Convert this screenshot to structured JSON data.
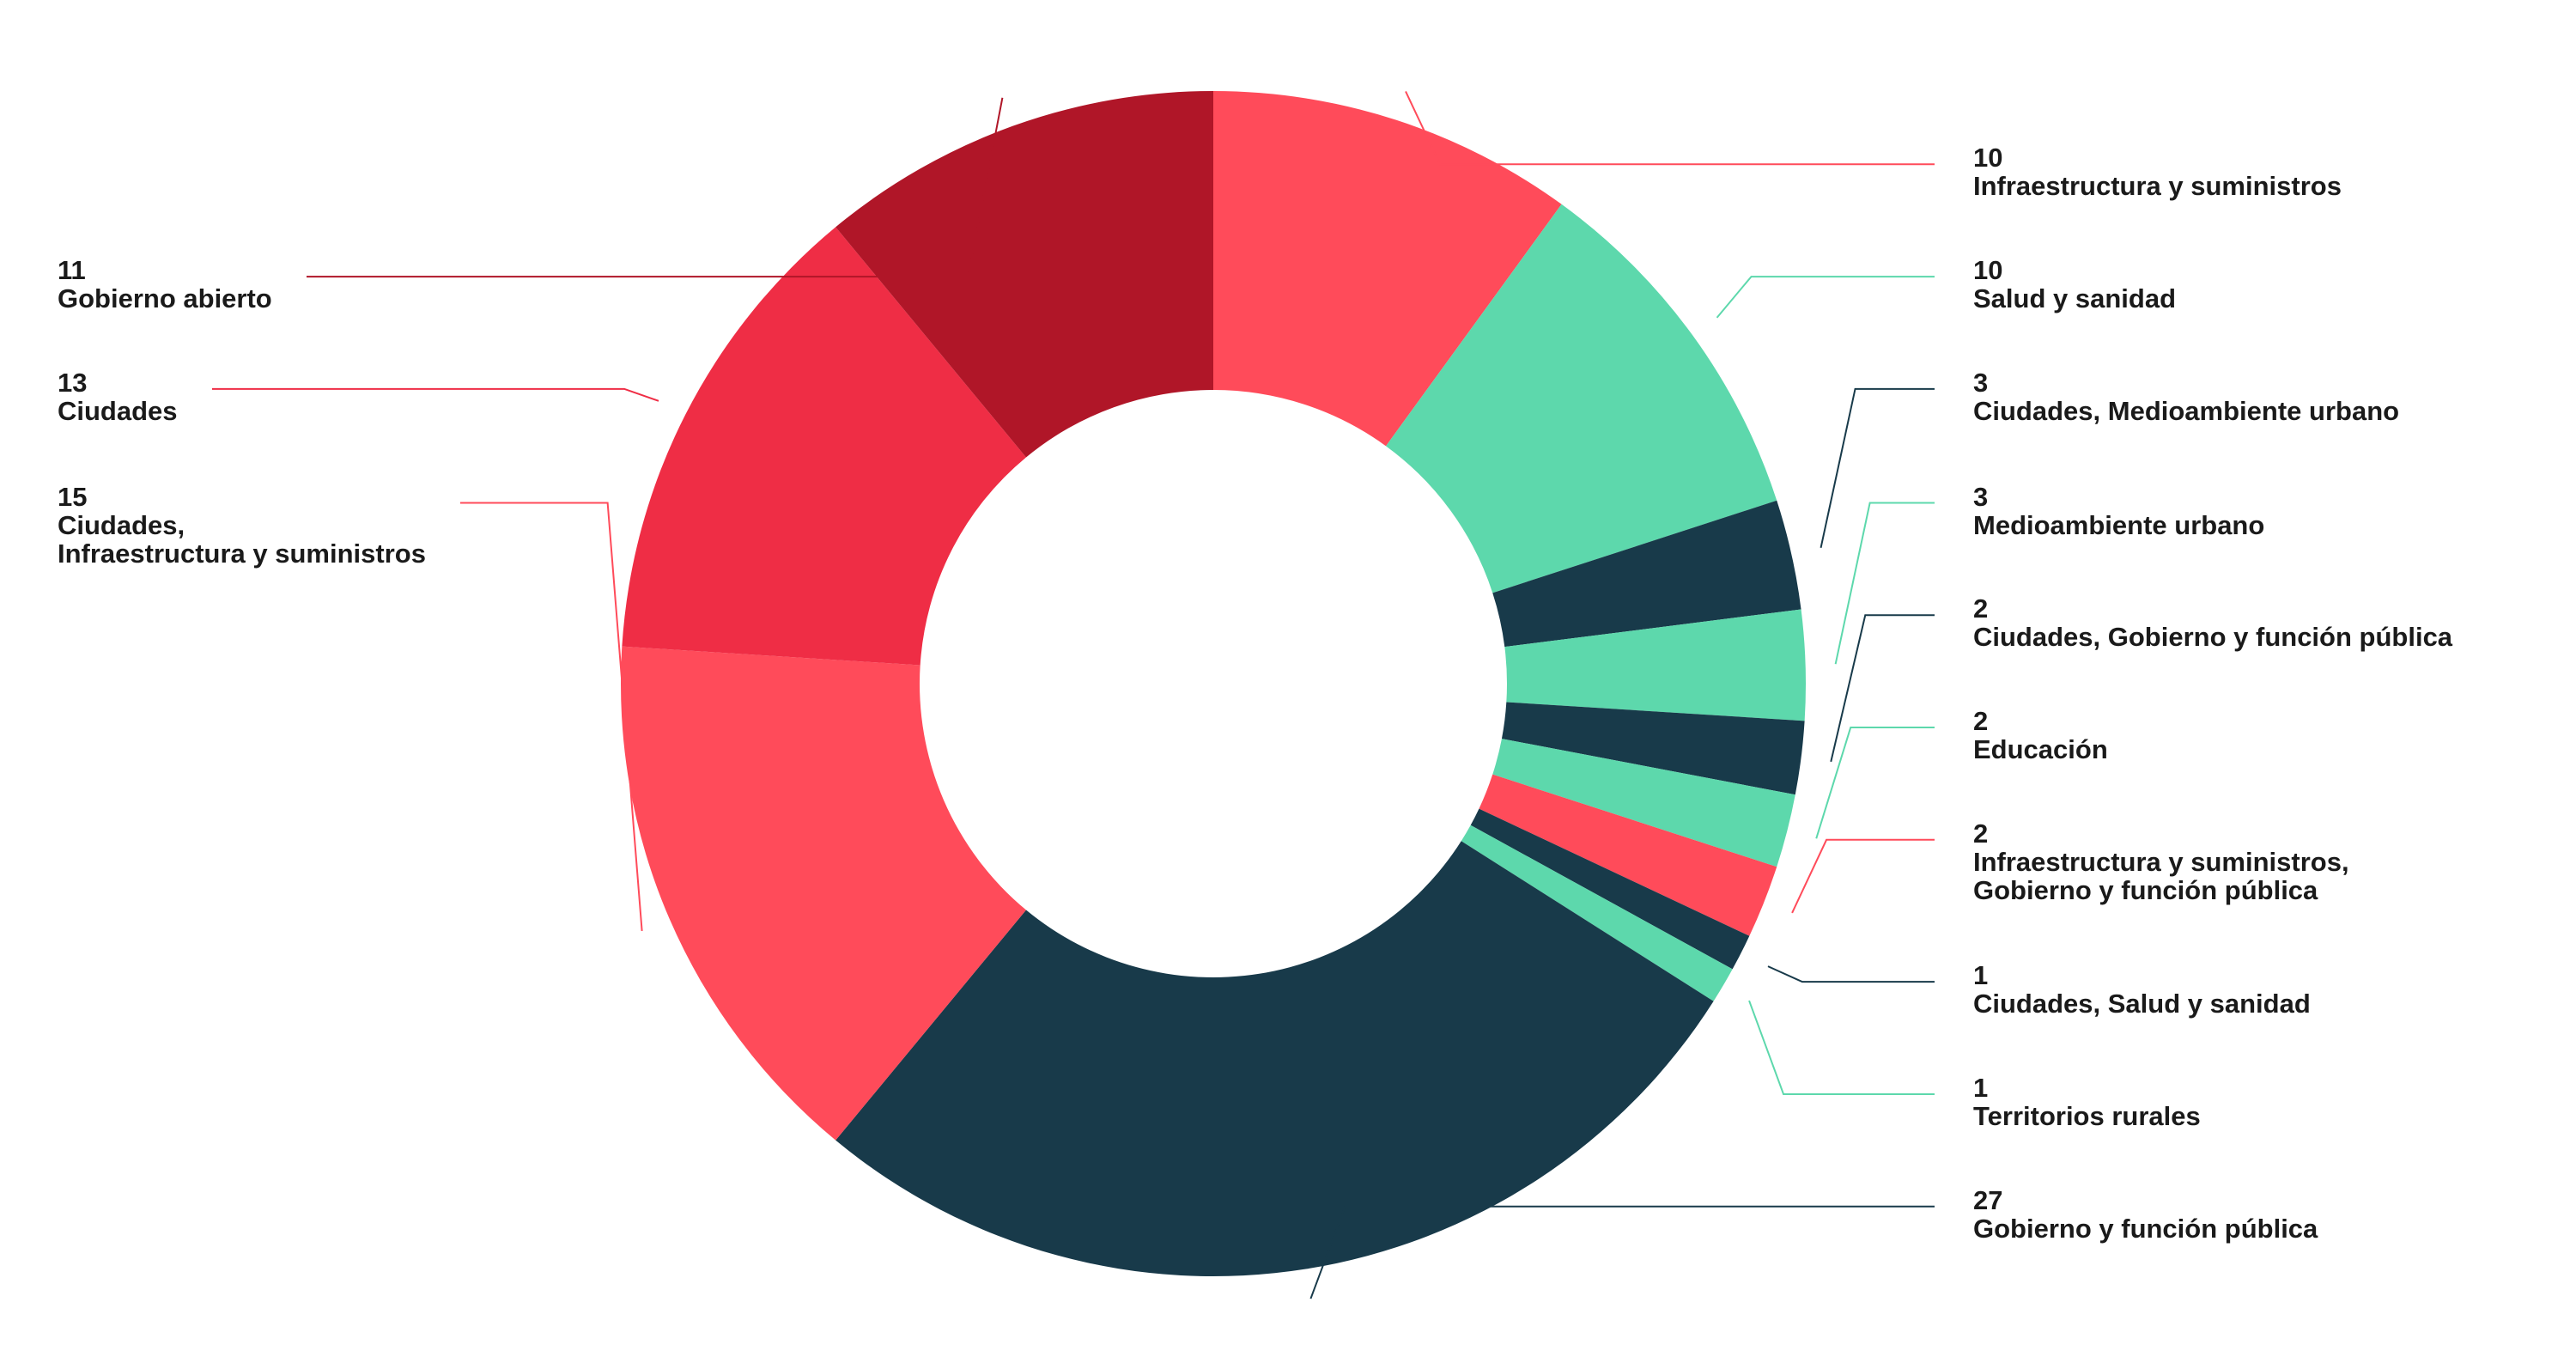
{
  "chart_data": {
    "type": "donut",
    "categories": [
      "Infraestructura y suministros",
      "Salud y sanidad",
      "Ciudades, Medioambiente urbano",
      "Medioambiente urbano",
      "Ciudades, Gobierno y función pública",
      "Educación",
      "Infraestructura y suministros,\nGobierno y función pública",
      "Ciudades, Salud y sanidad",
      "Territorios rurales",
      "Gobierno y función pública",
      "Ciudades,\nInfraestructura y suministros",
      "Ciudades",
      "Gobierno abierto"
    ],
    "values": [
      10,
      10,
      3,
      3,
      2,
      2,
      2,
      1,
      1,
      27,
      15,
      13,
      11
    ],
    "colors": [
      "#ff4b5a",
      "#5dd8ac",
      "#183a4a",
      "#5dd8ac",
      "#183a4a",
      "#5dd8ac",
      "#ff4b5a",
      "#183a4a",
      "#5dd8ac",
      "#183a4a",
      "#ff4b5a",
      "#ef2d45",
      "#b01628"
    ]
  }
}
